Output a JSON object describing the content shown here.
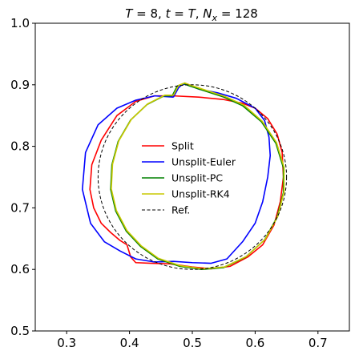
{
  "chart_data": {
    "type": "line",
    "title": "T = 8, t = T, N_x = 128",
    "title_parts": {
      "T": "T",
      "eq": " = ",
      "Tval": "8",
      "sep1": ", ",
      "t": "t",
      "eq2": " = ",
      "T2": "T",
      "sep2": ", ",
      "N": "N",
      "x": "x",
      "eq3": " = ",
      "Nval": "128"
    },
    "xlabel": "",
    "ylabel": "",
    "xlim": [
      0.25,
      0.75
    ],
    "ylim": [
      0.5,
      1.0
    ],
    "xticks": [
      "0.3",
      "0.4",
      "0.5",
      "0.6",
      "0.7"
    ],
    "yticks": [
      "0.5",
      "0.6",
      "0.7",
      "0.8",
      "0.9",
      "1.0"
    ],
    "xtick_values": [
      0.3,
      0.4,
      0.5,
      0.6,
      0.7
    ],
    "ytick_values": [
      0.5,
      0.6,
      0.7,
      0.8,
      0.9,
      1.0
    ],
    "grid": false,
    "legend_position": "center",
    "series": [
      {
        "name": "Split",
        "color": "#ff0000",
        "dash": "solid",
        "points": [
          [
            0.47,
            0.882
          ],
          [
            0.51,
            0.88
          ],
          [
            0.55,
            0.876
          ],
          [
            0.58,
            0.87
          ],
          [
            0.6,
            0.862
          ],
          [
            0.62,
            0.845
          ],
          [
            0.635,
            0.82
          ],
          [
            0.643,
            0.79
          ],
          [
            0.645,
            0.75
          ],
          [
            0.64,
            0.71
          ],
          [
            0.63,
            0.672
          ],
          [
            0.612,
            0.64
          ],
          [
            0.588,
            0.62
          ],
          [
            0.56,
            0.605
          ],
          [
            0.53,
            0.601
          ],
          [
            0.5,
            0.604
          ],
          [
            0.465,
            0.609
          ],
          [
            0.435,
            0.61
          ],
          [
            0.41,
            0.611
          ],
          [
            0.402,
            0.62
          ],
          [
            0.396,
            0.64
          ],
          [
            0.385,
            0.647
          ],
          [
            0.37,
            0.66
          ],
          [
            0.355,
            0.675
          ],
          [
            0.343,
            0.7
          ],
          [
            0.337,
            0.73
          ],
          [
            0.34,
            0.77
          ],
          [
            0.355,
            0.81
          ],
          [
            0.38,
            0.85
          ],
          [
            0.41,
            0.873
          ],
          [
            0.44,
            0.882
          ],
          [
            0.47,
            0.882
          ]
        ]
      },
      {
        "name": "Unsplit-Euler",
        "color": "#0000ff",
        "dash": "solid",
        "points": [
          [
            0.47,
            0.88
          ],
          [
            0.478,
            0.895
          ],
          [
            0.484,
            0.901
          ],
          [
            0.494,
            0.9
          ],
          [
            0.51,
            0.893
          ],
          [
            0.54,
            0.887
          ],
          [
            0.57,
            0.878
          ],
          [
            0.6,
            0.862
          ],
          [
            0.615,
            0.842
          ],
          [
            0.622,
            0.815
          ],
          [
            0.624,
            0.785
          ],
          [
            0.62,
            0.75
          ],
          [
            0.612,
            0.71
          ],
          [
            0.6,
            0.675
          ],
          [
            0.58,
            0.645
          ],
          [
            0.555,
            0.617
          ],
          [
            0.53,
            0.61
          ],
          [
            0.5,
            0.611
          ],
          [
            0.47,
            0.613
          ],
          [
            0.44,
            0.612
          ],
          [
            0.41,
            0.617
          ],
          [
            0.385,
            0.63
          ],
          [
            0.36,
            0.645
          ],
          [
            0.338,
            0.675
          ],
          [
            0.325,
            0.73
          ],
          [
            0.33,
            0.79
          ],
          [
            0.35,
            0.835
          ],
          [
            0.38,
            0.862
          ],
          [
            0.41,
            0.875
          ],
          [
            0.44,
            0.882
          ],
          [
            0.47,
            0.88
          ]
        ]
      },
      {
        "name": "Unsplit-PC",
        "color": "#008000",
        "dash": "solid",
        "points": [
          [
            0.468,
            0.882
          ],
          [
            0.476,
            0.898
          ],
          [
            0.486,
            0.902
          ],
          [
            0.496,
            0.898
          ],
          [
            0.52,
            0.89
          ],
          [
            0.55,
            0.88
          ],
          [
            0.58,
            0.866
          ],
          [
            0.61,
            0.84
          ],
          [
            0.633,
            0.805
          ],
          [
            0.645,
            0.765
          ],
          [
            0.645,
            0.725
          ],
          [
            0.635,
            0.685
          ],
          [
            0.615,
            0.648
          ],
          [
            0.585,
            0.62
          ],
          [
            0.55,
            0.603
          ],
          [
            0.515,
            0.6
          ],
          [
            0.48,
            0.605
          ],
          [
            0.445,
            0.617
          ],
          [
            0.418,
            0.637
          ],
          [
            0.395,
            0.662
          ],
          [
            0.378,
            0.695
          ],
          [
            0.37,
            0.73
          ],
          [
            0.372,
            0.77
          ],
          [
            0.382,
            0.808
          ],
          [
            0.402,
            0.843
          ],
          [
            0.428,
            0.868
          ],
          [
            0.455,
            0.882
          ],
          [
            0.468,
            0.882
          ]
        ]
      },
      {
        "name": "Unsplit-RK4",
        "color": "#c8c800",
        "dash": "solid",
        "points": [
          [
            0.47,
            0.883
          ],
          [
            0.478,
            0.899
          ],
          [
            0.488,
            0.903
          ],
          [
            0.498,
            0.899
          ],
          [
            0.522,
            0.891
          ],
          [
            0.552,
            0.881
          ],
          [
            0.582,
            0.867
          ],
          [
            0.611,
            0.841
          ],
          [
            0.634,
            0.806
          ],
          [
            0.646,
            0.766
          ],
          [
            0.646,
            0.726
          ],
          [
            0.636,
            0.686
          ],
          [
            0.616,
            0.649
          ],
          [
            0.586,
            0.621
          ],
          [
            0.551,
            0.604
          ],
          [
            0.516,
            0.601
          ],
          [
            0.481,
            0.606
          ],
          [
            0.446,
            0.618
          ],
          [
            0.419,
            0.638
          ],
          [
            0.396,
            0.663
          ],
          [
            0.379,
            0.696
          ],
          [
            0.371,
            0.731
          ],
          [
            0.373,
            0.771
          ],
          [
            0.383,
            0.809
          ],
          [
            0.403,
            0.844
          ],
          [
            0.429,
            0.869
          ],
          [
            0.456,
            0.883
          ],
          [
            0.47,
            0.883
          ]
        ]
      },
      {
        "name": "Ref.",
        "color": "#000000",
        "dash": "dashed",
        "circle": {
          "cx": 0.5,
          "cy": 0.75,
          "r": 0.15
        }
      }
    ]
  }
}
